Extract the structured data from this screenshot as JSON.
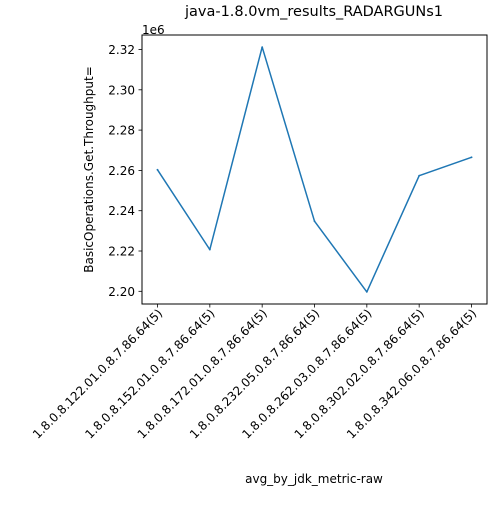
{
  "chart_data": {
    "type": "line",
    "title": "java-1.8.0vm_results_RADARGUNs1",
    "xlabel": "avg_by_jdk_metric-raw",
    "ylabel": "BasicOperations.Get.Throughput=",
    "y_offset_label": "1e6",
    "y_scale": 1000000,
    "categories": [
      "1.8.0.8.122.01.0.8.7.86.64(5)",
      "1.8.0.8.152.01.0.8.7.86.64(5)",
      "1.8.0.8.172.01.0.8.7.86.64(5)",
      "1.8.0.8.232.05.0.8.7.86.64(5)",
      "1.8.0.8.262.03.0.8.7.86.64(5)",
      "1.8.0.8.302.02.0.8.7.86.64(5)",
      "1.8.0.8.342.06.0.8.7.86.64(5)"
    ],
    "values": [
      2260300,
      2220700,
      2321200,
      2234800,
      2199700,
      2257400,
      2266500
    ],
    "ylim": [
      2193700,
      2327200
    ],
    "yticks": [
      2200000,
      2220000,
      2240000,
      2260000,
      2280000,
      2300000,
      2320000
    ],
    "ytick_labels": [
      "2.20",
      "2.22",
      "2.24",
      "2.26",
      "2.28",
      "2.30",
      "2.32"
    ],
    "line_color": "#1f77b4",
    "grid": false,
    "legend": "none"
  }
}
